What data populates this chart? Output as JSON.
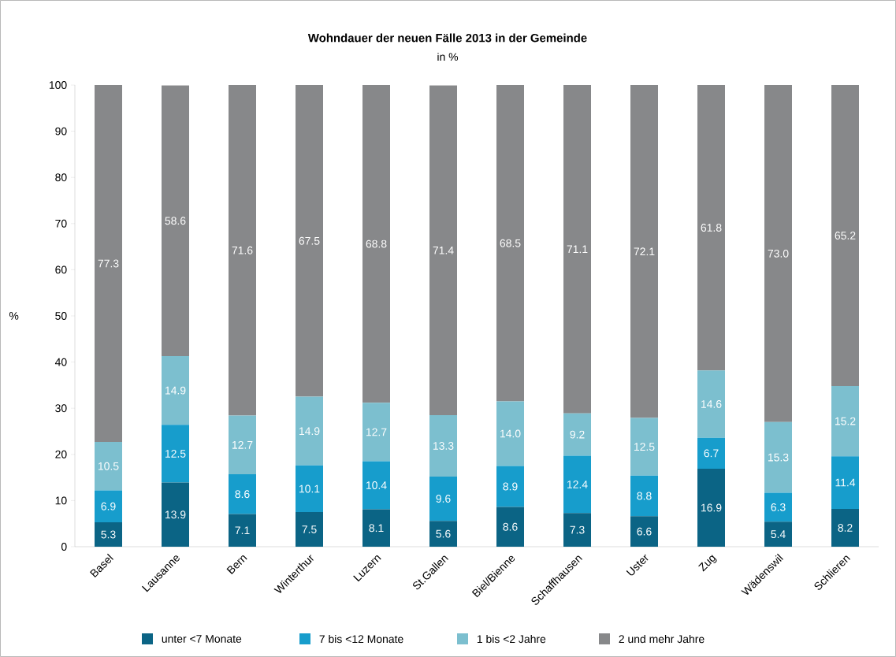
{
  "chart_data": {
    "type": "bar",
    "stacked": true,
    "title": "Wohndauer der neuen Fälle 2013 in der Gemeinde",
    "subtitle": "in %",
    "ylabel": "%",
    "categories": [
      "Basel",
      "Lausanne",
      "Bern",
      "Winterthur",
      "Luzern",
      "St.Gallen",
      "Biel/Bienne",
      "Schaffhausen",
      "Uster",
      "Zug",
      "Wädenswil",
      "Schlieren"
    ],
    "ylim": [
      0,
      100
    ],
    "yticks": [
      0,
      10,
      20,
      30,
      40,
      50,
      60,
      70,
      80,
      90,
      100
    ],
    "legend": "bottom",
    "series": [
      {
        "name": "unter <7 Monate",
        "color": "#0b6485",
        "values": [
          5.3,
          13.9,
          7.1,
          7.5,
          8.1,
          5.6,
          8.6,
          7.3,
          6.6,
          16.9,
          5.4,
          8.2
        ],
        "value_labels": [
          "5.3",
          "13.9",
          "7.1",
          "7.5",
          "8.1",
          "5.6",
          "8.6",
          "7.3",
          "6.6",
          "16.9",
          "5.4",
          "8.2"
        ]
      },
      {
        "name": "7 bis <12 Monate",
        "color": "#179dcc",
        "values": [
          6.9,
          12.5,
          8.6,
          10.1,
          10.4,
          9.6,
          8.9,
          12.4,
          8.8,
          6.7,
          6.3,
          11.4
        ],
        "value_labels": [
          "6.9",
          "12.5",
          "8.6",
          "10.1",
          "10.4",
          "9.6",
          "8.9",
          "12.4",
          "8.8",
          "6.7",
          "6.3",
          "11.4"
        ]
      },
      {
        "name": "1 bis <2 Jahre",
        "color": "#7cbfcf",
        "values": [
          10.5,
          14.9,
          12.7,
          14.9,
          12.7,
          13.3,
          14.0,
          9.2,
          12.5,
          14.6,
          15.3,
          15.2
        ],
        "value_labels": [
          "10.5",
          "14.9",
          "12.7",
          "14.9",
          "12.7",
          "13.3",
          "14.0",
          "9.2",
          "12.5",
          "14.6",
          "15.3",
          "15.2"
        ]
      },
      {
        "name": "2 und mehr Jahre",
        "color": "#87888a",
        "values": [
          77.3,
          58.6,
          71.6,
          67.5,
          68.8,
          71.4,
          68.5,
          71.1,
          72.1,
          61.8,
          73.0,
          65.2
        ],
        "value_labels": [
          "77.3",
          "58.6",
          "71.6",
          "67.5",
          "68.8",
          "71.4",
          "68.5",
          "71.1",
          "72.1",
          "61.8",
          "73.0",
          "65.2"
        ]
      }
    ]
  }
}
